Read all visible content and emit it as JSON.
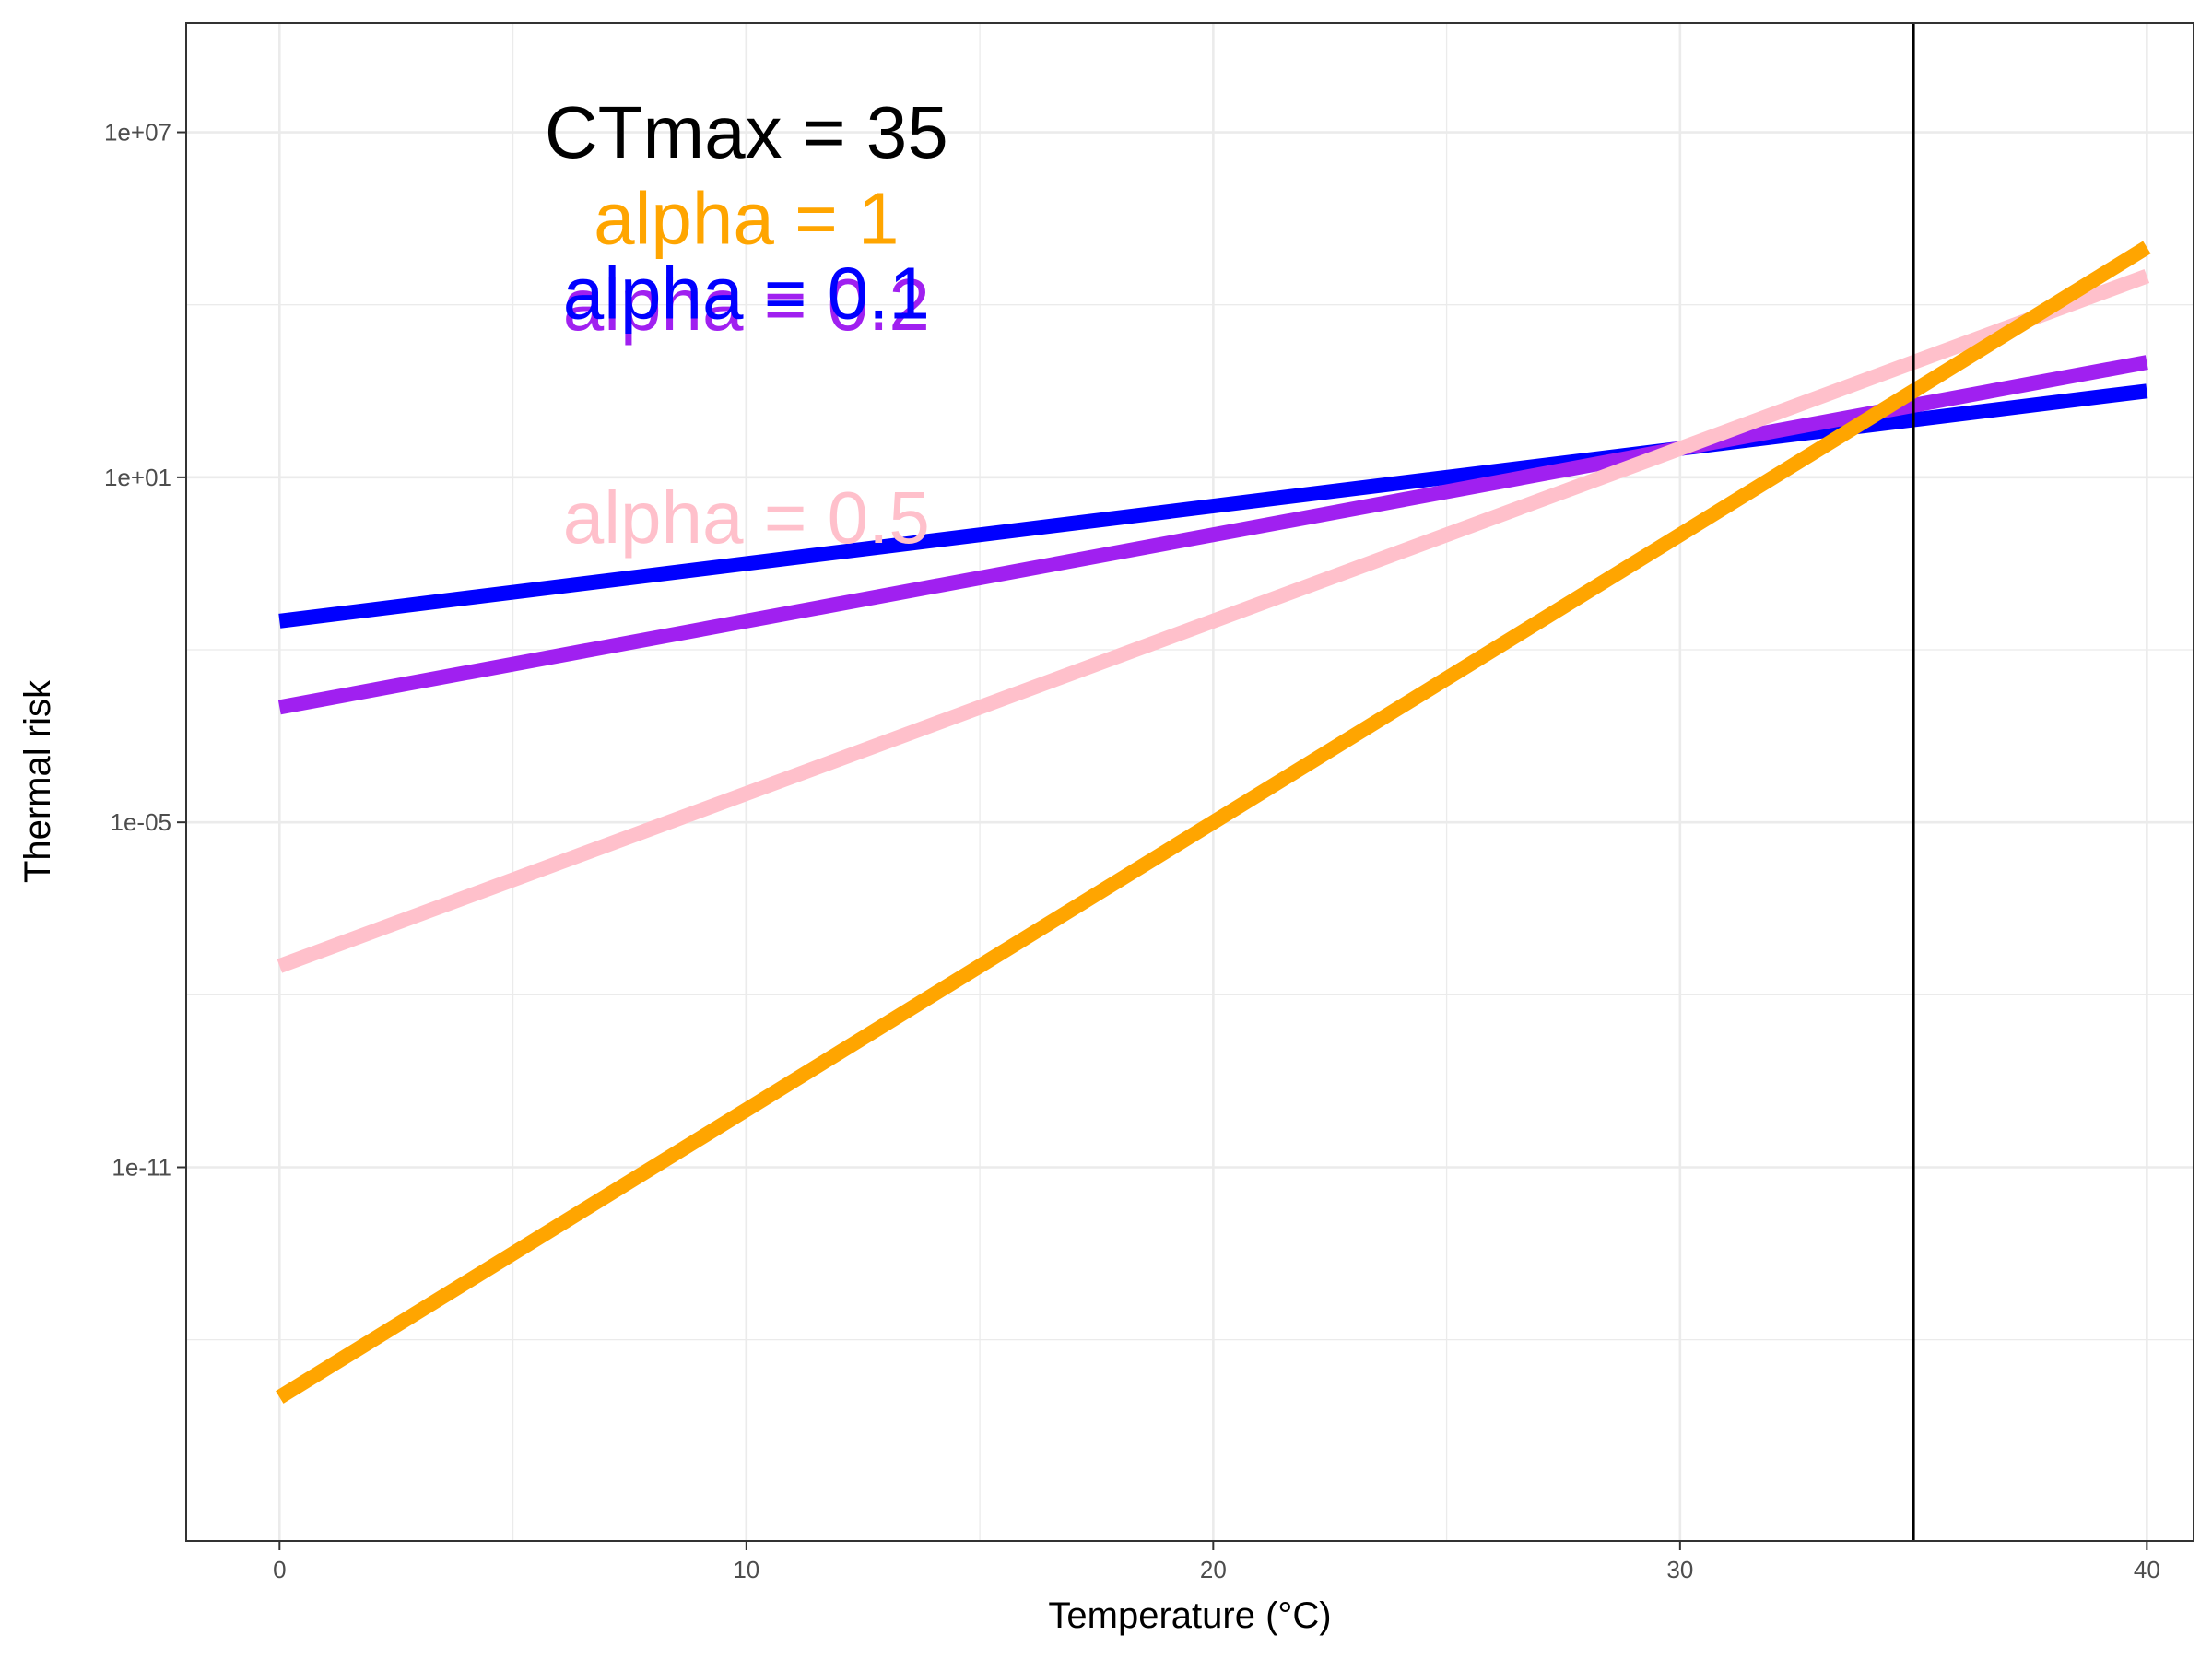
{
  "chart_data": {
    "type": "line",
    "title": "",
    "xlabel": "Temperature (°C)",
    "ylabel": "Thermal risk",
    "y_scale": "log10",
    "xlim": [
      -2,
      41
    ],
    "ylim_log10": [
      -17.5,
      8.9
    ],
    "x_ticks": [
      0,
      10,
      20,
      30,
      40
    ],
    "x_tick_labels": [
      "0",
      "10",
      "20",
      "30",
      "40"
    ],
    "y_ticks_log10": [
      7,
      1,
      -5,
      -11
    ],
    "y_tick_labels": [
      "1e+07",
      "1e+01",
      "1e-05",
      "1e-11"
    ],
    "minor_gridlines_log10": [
      4,
      -2,
      -8,
      -14
    ],
    "minor_gridlines_x": [
      5,
      15,
      25,
      35
    ],
    "grid": true,
    "vline": {
      "x": 35,
      "color": "#000000"
    },
    "x": [
      0,
      40
    ],
    "series": [
      {
        "name": "alpha = 0.1",
        "color": "#0000FF",
        "y_log10": [
          -1.5,
          2.5
        ]
      },
      {
        "name": "alpha = 0.2",
        "color": "#A020F0",
        "y_log10": [
          -3.0,
          3.0
        ]
      },
      {
        "name": "alpha = 0.5",
        "color": "#FFC0CB",
        "y_log10": [
          -7.5,
          4.5
        ]
      },
      {
        "name": "alpha = 1",
        "color": "#FFA500",
        "y_log10": [
          -15.0,
          5.0
        ]
      }
    ],
    "annotations": [
      {
        "key": "ctmax",
        "text": "CTmax = 35",
        "color": "#000000",
        "x": 10,
        "y_log10": 7.0,
        "size": 80
      },
      {
        "key": "a1",
        "text": "alpha = 1",
        "color": "#FFA500",
        "x": 10,
        "y_log10": 5.5,
        "size": 80
      },
      {
        "key": "a02",
        "text": "alpha = 0.2",
        "color": "#A020F0",
        "x": 10,
        "y_log10": 4.0,
        "size": 80
      },
      {
        "key": "a01",
        "text": "alpha = 0.1",
        "color": "#0000FF",
        "x": 10,
        "y_log10": 4.2,
        "size": 80
      },
      {
        "key": "a05",
        "text": "alpha = 0.5",
        "color": "#FFC0CB",
        "x": 10,
        "y_log10": 0.3,
        "size": 80
      }
    ]
  }
}
